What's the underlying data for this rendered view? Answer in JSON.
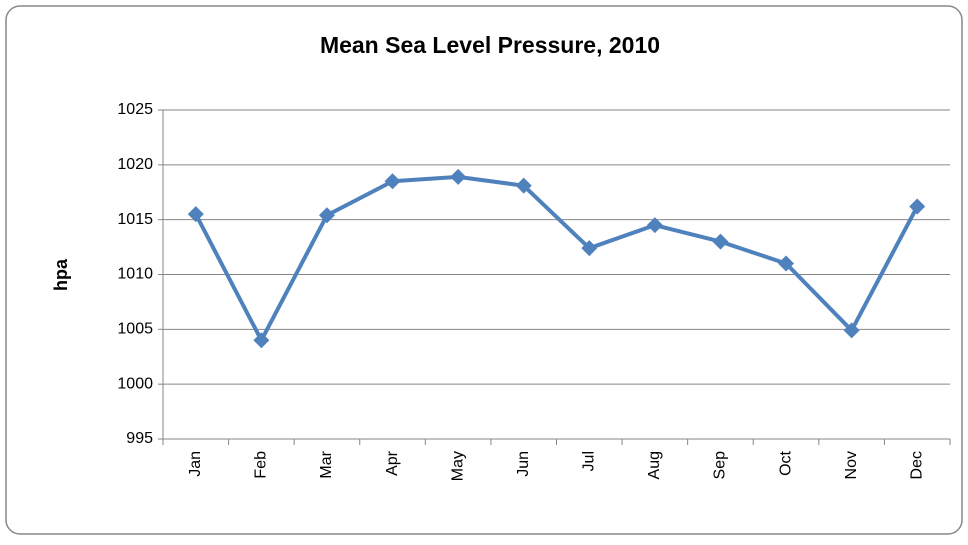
{
  "chart_data": {
    "type": "line",
    "title": "Mean Sea Level Pressure, 2010",
    "y_label": "hpa",
    "categories": [
      "Jan",
      "Feb",
      "Mar",
      "Apr",
      "May",
      "Jun",
      "Jul",
      "Aug",
      "Sep",
      "Oct",
      "Nov",
      "Dec"
    ],
    "series": [
      {
        "color": "#4f81bd",
        "values": [
          1015.5,
          1004.0,
          1015.4,
          1018.5,
          1018.9,
          1018.1,
          1012.4,
          1014.5,
          1013.0,
          1011.0,
          1004.9,
          1016.2
        ]
      }
    ],
    "ylim": [
      995,
      1025
    ],
    "yticks": [
      995,
      1000,
      1005,
      1010,
      1015,
      1020,
      1025
    ],
    "grid": true
  }
}
